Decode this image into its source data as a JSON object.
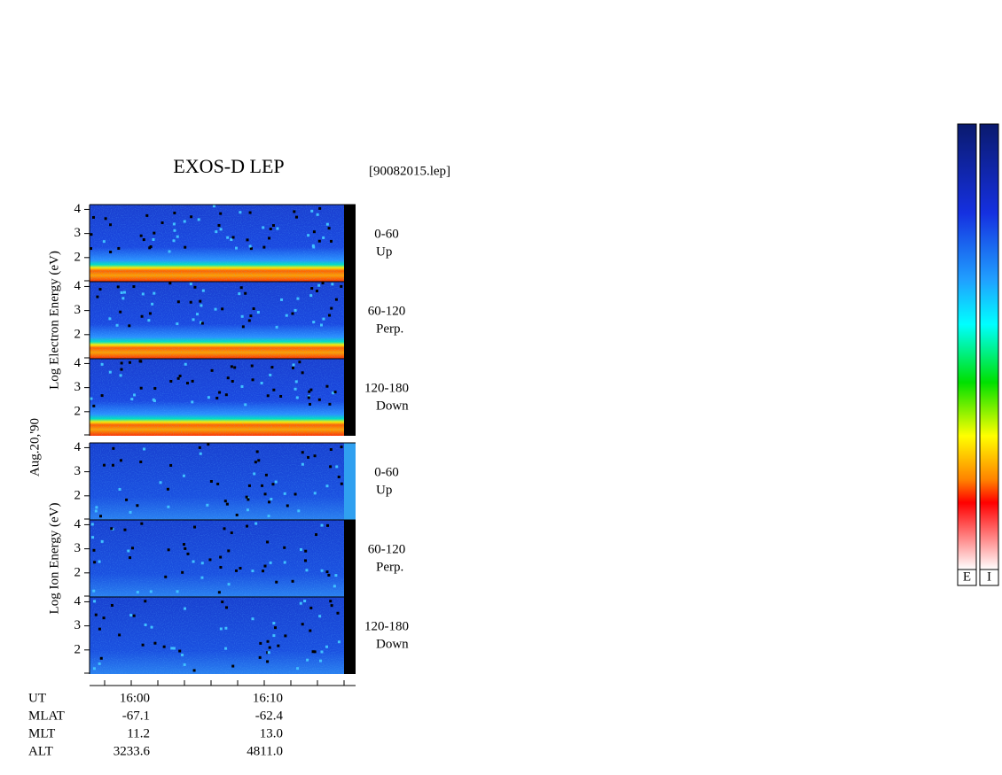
{
  "chart_data": {
    "type": "spectrogram",
    "title": "EXOS-D LEP",
    "file": "[90082015.lep]",
    "date": "Aug.20,'90",
    "groups": [
      {
        "label": "Log  Electron  Energy (eV)",
        "panels": [
          {
            "angle": "0-60",
            "direction": "Up"
          },
          {
            "angle": "60-120",
            "direction": "Perp."
          },
          {
            "angle": "120-180",
            "direction": "Down"
          }
        ]
      },
      {
        "label": "Log  Ion  Energy (eV)",
        "panels": [
          {
            "angle": "0-60",
            "direction": "Up"
          },
          {
            "angle": "60-120",
            "direction": "Perp."
          },
          {
            "angle": "120-180",
            "direction": "Down"
          }
        ]
      }
    ],
    "ylim": [
      1,
      4.2
    ],
    "yticks": [
      2,
      3,
      4
    ],
    "orbit": [
      [
        "UT",
        "16:00",
        "16:10"
      ],
      [
        "MLAT",
        "-67.1",
        "-62.4"
      ],
      [
        "MLT",
        "11.2",
        "13.0"
      ],
      [
        "ALT",
        "3233.6",
        "4811.0"
      ]
    ],
    "colorbar_labels": [
      "E",
      "I"
    ]
  }
}
